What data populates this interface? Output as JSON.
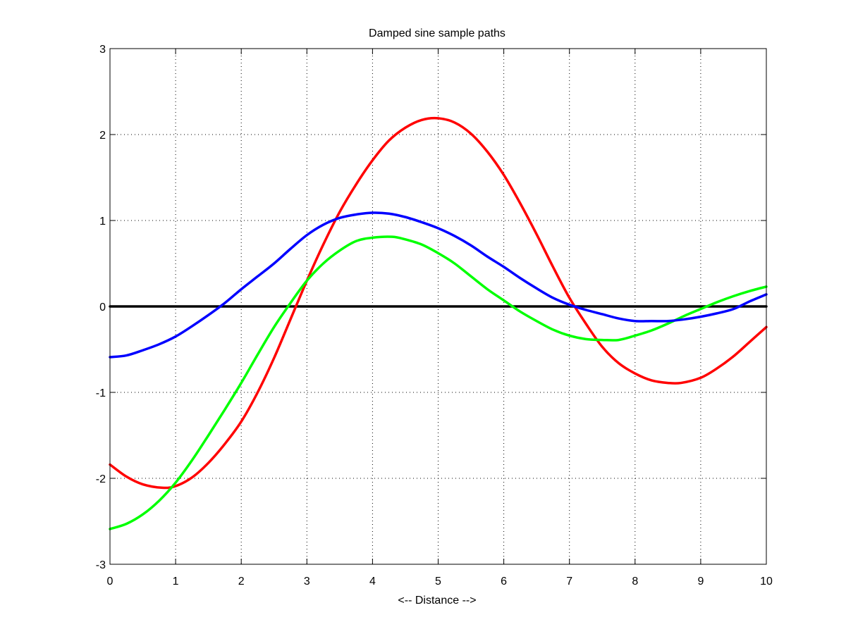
{
  "chart_data": {
    "type": "line",
    "title": "Damped sine sample paths",
    "xlabel": "<-- Distance -->",
    "ylabel": "",
    "xlim": [
      0,
      10
    ],
    "ylim": [
      -3,
      3
    ],
    "xticks": [
      0,
      1,
      2,
      3,
      4,
      5,
      6,
      7,
      8,
      9,
      10
    ],
    "yticks": [
      -3,
      -2,
      -1,
      0,
      1,
      2,
      3
    ],
    "xtick_labels": [
      "0",
      "1",
      "2",
      "3",
      "4",
      "5",
      "6",
      "7",
      "8",
      "9",
      "10"
    ],
    "ytick_labels": [
      "-3",
      "-2",
      "-1",
      "0",
      "1",
      "2",
      "3"
    ],
    "grid": true,
    "legend": "none",
    "series": [
      {
        "color": "#000000",
        "x": [
          0,
          10
        ],
        "values": [
          0,
          0
        ]
      },
      {
        "color": "#ff0000",
        "x": [
          0,
          0.25,
          0.5,
          0.8,
          1.0,
          1.25,
          1.5,
          1.75,
          2.0,
          2.25,
          2.5,
          2.75,
          3.0,
          3.25,
          3.5,
          3.75,
          4.0,
          4.25,
          4.5,
          4.75,
          5.0,
          5.25,
          5.5,
          5.75,
          6.0,
          6.25,
          6.5,
          6.75,
          7.0,
          7.25,
          7.5,
          7.75,
          8.0,
          8.25,
          8.5,
          8.7,
          9.0,
          9.25,
          9.5,
          9.75,
          10.0
        ],
        "values": [
          -1.84,
          -1.98,
          -2.07,
          -2.11,
          -2.09,
          -1.99,
          -1.82,
          -1.6,
          -1.34,
          -1.0,
          -0.6,
          -0.15,
          0.3,
          0.72,
          1.1,
          1.42,
          1.7,
          1.93,
          2.08,
          2.17,
          2.19,
          2.14,
          2.01,
          1.8,
          1.53,
          1.2,
          0.84,
          0.46,
          0.1,
          -0.2,
          -0.47,
          -0.66,
          -0.78,
          -0.86,
          -0.89,
          -0.89,
          -0.83,
          -0.72,
          -0.58,
          -0.41,
          -0.24
        ]
      },
      {
        "color": "#00ff00",
        "x": [
          0,
          0.25,
          0.5,
          0.75,
          1.0,
          1.25,
          1.5,
          1.75,
          2.0,
          2.25,
          2.5,
          2.75,
          3.0,
          3.25,
          3.5,
          3.75,
          4.0,
          4.3,
          4.5,
          4.75,
          5.0,
          5.25,
          5.5,
          5.75,
          6.0,
          6.25,
          6.5,
          6.75,
          7.0,
          7.25,
          7.5,
          7.75,
          8.0,
          8.25,
          8.5,
          8.75,
          9.0,
          9.25,
          9.5,
          9.75,
          10.0
        ],
        "values": [
          -2.59,
          -2.53,
          -2.42,
          -2.26,
          -2.05,
          -1.79,
          -1.5,
          -1.2,
          -0.89,
          -0.56,
          -0.24,
          0.04,
          0.3,
          0.5,
          0.65,
          0.76,
          0.8,
          0.81,
          0.78,
          0.72,
          0.62,
          0.5,
          0.35,
          0.2,
          0.07,
          -0.06,
          -0.17,
          -0.27,
          -0.34,
          -0.38,
          -0.39,
          -0.39,
          -0.34,
          -0.28,
          -0.2,
          -0.11,
          -0.03,
          0.05,
          0.12,
          0.18,
          0.23
        ]
      },
      {
        "color": "#0000ff",
        "x": [
          0,
          0.25,
          0.5,
          0.75,
          1.0,
          1.25,
          1.5,
          1.75,
          2.0,
          2.25,
          2.5,
          2.75,
          3.0,
          3.25,
          3.5,
          3.75,
          4.0,
          4.25,
          4.5,
          4.75,
          5.0,
          5.25,
          5.5,
          5.75,
          6.0,
          6.25,
          6.5,
          6.75,
          7.0,
          7.25,
          7.5,
          7.75,
          8.0,
          8.25,
          8.5,
          8.75,
          9.0,
          9.25,
          9.5,
          9.75,
          10.0
        ],
        "values": [
          -0.59,
          -0.57,
          -0.51,
          -0.44,
          -0.35,
          -0.23,
          -0.1,
          0.04,
          0.2,
          0.35,
          0.5,
          0.67,
          0.83,
          0.95,
          1.03,
          1.07,
          1.09,
          1.08,
          1.04,
          0.98,
          0.91,
          0.82,
          0.71,
          0.58,
          0.46,
          0.33,
          0.21,
          0.1,
          0.02,
          -0.04,
          -0.09,
          -0.14,
          -0.17,
          -0.17,
          -0.17,
          -0.15,
          -0.12,
          -0.08,
          -0.03,
          0.06,
          0.14
        ]
      }
    ]
  }
}
